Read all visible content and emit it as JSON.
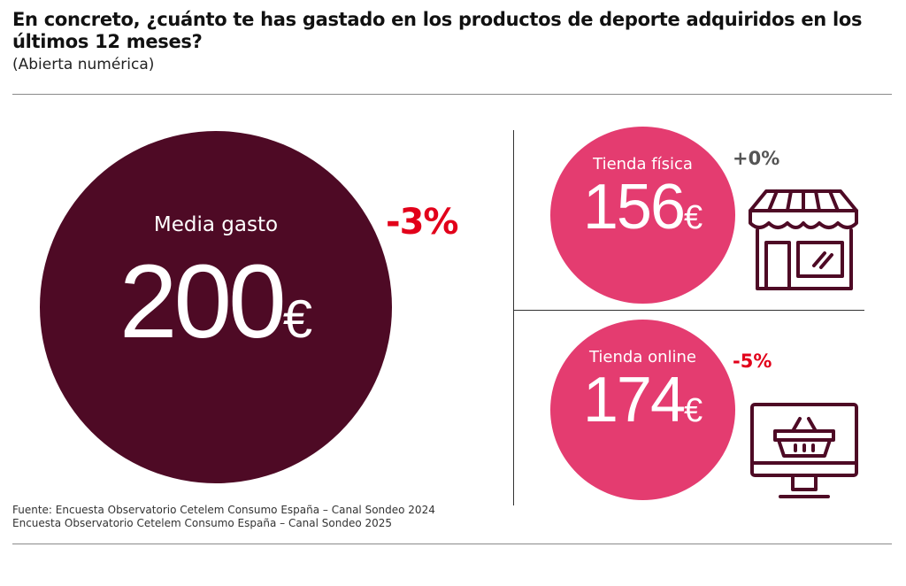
{
  "header": {
    "title": "En concreto, ¿cuánto te has gastado en los productos de deporte adquiridos en los últimos 12 meses?",
    "subtitle": "(Abierta numérica)"
  },
  "colors": {
    "main_circle": "#4e0a25",
    "secondary_circle": "#e43c70",
    "negative_change": "#e2001a",
    "neutral_change": "#555555",
    "icon_stroke": "#4e0a25"
  },
  "icons": {
    "store": "store-front-icon",
    "online": "monitor-basket-icon"
  },
  "chart_data": [
    {
      "type": "bubble",
      "label": "Media gasto",
      "value": 200,
      "unit": "€",
      "change": "-3%"
    },
    {
      "type": "bubble",
      "label": "Tienda física",
      "value": 156,
      "unit": "€",
      "change": "+0%"
    },
    {
      "type": "bubble",
      "label": "Tienda online",
      "value": 174,
      "unit": "€",
      "change": "-5%"
    }
  ],
  "source": {
    "line1": "Fuente: Encuesta Observatorio Cetelem Consumo España – Canal Sondeo 2024",
    "line2": "Encuesta Observatorio Cetelem Consumo España – Canal Sondeo 2025"
  }
}
